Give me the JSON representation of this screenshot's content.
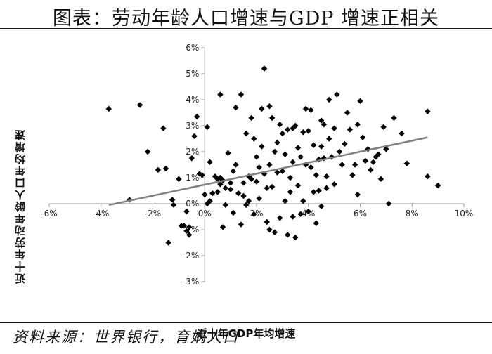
{
  "header": {
    "title": "图表：劳动年龄人口增速与GDP 增速正相关"
  },
  "footer": {
    "source": "资料来源：世界银行，育娲人口"
  },
  "chart_data": {
    "type": "scatter",
    "title": "图表：劳动年龄人口增速与GDP 增速正相关",
    "xlabel": "近十年GDP年均增速",
    "ylabel": "近十年劳动年龄人口年均增速",
    "xlim": [
      -6,
      10
    ],
    "ylim": [
      -3,
      6
    ],
    "x_ticks": [
      -6,
      -4,
      -2,
      0,
      2,
      4,
      6,
      8,
      10
    ],
    "y_ticks": [
      -3,
      -2,
      -1,
      0,
      1,
      2,
      3,
      4,
      5,
      6
    ],
    "x_tick_labels": [
      "-6%",
      "-4%",
      "-2%",
      "0%",
      "2%",
      "4%",
      "6%",
      "8%",
      "10%"
    ],
    "y_tick_labels": [
      "-3%",
      "-2%",
      "-1%",
      "0%",
      "1%",
      "2%",
      "3%",
      "4%",
      "5%",
      "6%"
    ],
    "grid": false,
    "marker": "diamond",
    "marker_color": "#000000",
    "trendline": {
      "x": [
        -3.7,
        8.6
      ],
      "y": [
        -0.05,
        2.55
      ],
      "color": "#808080"
    },
    "points": [
      [
        -3.7,
        3.65
      ],
      [
        -2.9,
        0.15
      ],
      [
        -1.6,
        2.9
      ],
      [
        -1.5,
        1.35
      ],
      [
        -1.4,
        -1.5
      ],
      [
        -1.25,
        0.15
      ],
      [
        -1.2,
        -0.05
      ],
      [
        -1.0,
        0.95
      ],
      [
        -0.9,
        -0.85
      ],
      [
        -0.8,
        -0.85
      ],
      [
        -0.7,
        -0.3
      ],
      [
        -0.7,
        -1.05
      ],
      [
        -0.6,
        -1.2
      ],
      [
        -0.6,
        -0.9
      ],
      [
        -0.5,
        1.75
      ],
      [
        -0.3,
        3.35
      ],
      [
        -0.2,
        1.15
      ],
      [
        -0.1,
        1.1
      ],
      [
        0.0,
        0.35
      ],
      [
        0.1,
        0.0
      ],
      [
        0.1,
        2.95
      ],
      [
        0.2,
        0.1
      ],
      [
        0.3,
        0.4
      ],
      [
        0.4,
        1.05
      ],
      [
        0.5,
        0.45
      ],
      [
        0.5,
        0.95
      ],
      [
        0.6,
        4.2
      ],
      [
        0.6,
        0.75
      ],
      [
        0.6,
        1.0
      ],
      [
        0.7,
        0.9
      ],
      [
        0.7,
        -0.9
      ],
      [
        0.8,
        0.6
      ],
      [
        0.8,
        -0.05
      ],
      [
        0.9,
        1.95
      ],
      [
        1.0,
        0.8
      ],
      [
        1.0,
        0.55
      ],
      [
        1.1,
        1.25
      ],
      [
        1.1,
        -0.35
      ],
      [
        1.2,
        3.7
      ],
      [
        1.3,
        0.4
      ],
      [
        1.4,
        4.2
      ],
      [
        1.4,
        -0.8
      ],
      [
        1.5,
        0.8
      ],
      [
        1.5,
        0.3
      ],
      [
        1.6,
        2.7
      ],
      [
        1.6,
        -0.05
      ],
      [
        1.7,
        1.05
      ],
      [
        1.7,
        0.1
      ],
      [
        1.8,
        3.3
      ],
      [
        1.8,
        0.95
      ],
      [
        1.9,
        2.5
      ],
      [
        1.9,
        -0.4
      ],
      [
        2.0,
        1.8
      ],
      [
        2.0,
        0.85
      ],
      [
        2.1,
        1.4
      ],
      [
        2.1,
        0.2
      ],
      [
        2.2,
        3.65
      ],
      [
        2.2,
        2.2
      ],
      [
        2.3,
        1.15
      ],
      [
        2.3,
        5.2
      ],
      [
        2.4,
        0.6
      ],
      [
        2.4,
        -0.7
      ],
      [
        2.5,
        3.75
      ],
      [
        2.5,
        1.5
      ],
      [
        2.5,
        -1.0
      ],
      [
        2.6,
        0.65
      ],
      [
        2.7,
        2.0
      ],
      [
        2.7,
        -1.1
      ],
      [
        2.8,
        2.35
      ],
      [
        2.8,
        1.2
      ],
      [
        2.9,
        3.05
      ],
      [
        2.9,
        -0.55
      ],
      [
        3.0,
        1.25
      ],
      [
        3.0,
        2.7
      ],
      [
        3.1,
        0.1
      ],
      [
        3.1,
        1.9
      ],
      [
        3.2,
        2.85
      ],
      [
        3.2,
        -1.2
      ],
      [
        3.3,
        1.0
      ],
      [
        3.3,
        0.45
      ],
      [
        3.4,
        2.9
      ],
      [
        3.4,
        1.6
      ],
      [
        3.5,
        -1.3
      ],
      [
        3.5,
        3.0
      ],
      [
        3.6,
        0.7
      ],
      [
        3.6,
        2.15
      ],
      [
        3.7,
        -0.4
      ],
      [
        3.7,
        1.8
      ],
      [
        3.8,
        2.75
      ],
      [
        3.8,
        0.1
      ],
      [
        3.9,
        3.65
      ],
      [
        3.9,
        1.5
      ],
      [
        4.0,
        2.8
      ],
      [
        4.0,
        -0.3
      ],
      [
        4.1,
        1.4
      ],
      [
        4.1,
        3.6
      ],
      [
        4.2,
        0.45
      ],
      [
        4.2,
        2.25
      ],
      [
        4.3,
        1.1
      ],
      [
        4.3,
        -0.75
      ],
      [
        4.4,
        1.7
      ],
      [
        4.4,
        0.5
      ],
      [
        4.5,
        3.2
      ],
      [
        4.5,
        2.2
      ],
      [
        4.6,
        1.75
      ],
      [
        4.6,
        3.05
      ],
      [
        4.7,
        1.05
      ],
      [
        4.7,
        0.6
      ],
      [
        4.8,
        4.0
      ],
      [
        4.8,
        2.5
      ],
      [
        4.9,
        1.8
      ],
      [
        5.0,
        0.75
      ],
      [
        5.0,
        2.9
      ],
      [
        5.1,
        4.2
      ],
      [
        5.2,
        2.0
      ],
      [
        5.3,
        1.5
      ],
      [
        5.4,
        2.3
      ],
      [
        5.5,
        3.5
      ],
      [
        5.6,
        2.85
      ],
      [
        5.7,
        1.1
      ],
      [
        5.8,
        1.5
      ],
      [
        5.9,
        3.05
      ],
      [
        6.0,
        3.95
      ],
      [
        6.1,
        2.55
      ],
      [
        6.2,
        1.65
      ],
      [
        6.3,
        2.1
      ],
      [
        6.4,
        1.3
      ],
      [
        6.5,
        1.6
      ],
      [
        6.6,
        1.8
      ],
      [
        6.7,
        1.9
      ],
      [
        6.8,
        0.95
      ],
      [
        6.9,
        2.95
      ],
      [
        7.0,
        2.1
      ],
      [
        7.1,
        0.0
      ],
      [
        7.3,
        3.3
      ],
      [
        7.6,
        2.7
      ],
      [
        7.8,
        1.55
      ],
      [
        8.6,
        3.55
      ],
      [
        8.6,
        1.05
      ],
      [
        9.0,
        0.7
      ],
      [
        -2.5,
        3.8
      ],
      [
        -2.2,
        2.0
      ],
      [
        -1.8,
        1.3
      ],
      [
        -0.4,
        2.6
      ],
      [
        0.2,
        1.6
      ],
      [
        1.2,
        1.5
      ],
      [
        2.6,
        3.3
      ],
      [
        3.4,
        -0.5
      ],
      [
        4.5,
        -0.1
      ],
      [
        5.9,
        0.35
      ]
    ]
  }
}
